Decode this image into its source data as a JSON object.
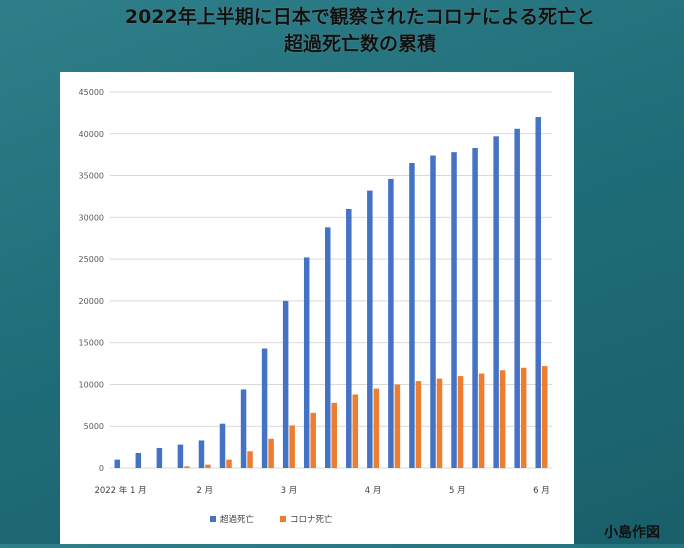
{
  "title": {
    "line1": "2022年上半期に日本で観察されたコロナによる死亡と",
    "line2": "超過死亡数の累積"
  },
  "credit": "小島作図",
  "colors": {
    "excess": "#4472c4",
    "covid": "#ed7d31",
    "background": "#237480",
    "grid": "#d9d9d9"
  },
  "chart_data": {
    "type": "bar",
    "ylim": [
      0,
      45000
    ],
    "yticks": [
      "0",
      "5000",
      "10000",
      "15000",
      "20000",
      "25000",
      "30000",
      "35000",
      "40000",
      "45000"
    ],
    "xtick_labels": [
      {
        "label": "2022 年 1 月",
        "index": 0
      },
      {
        "label": "2 月",
        "index": 4
      },
      {
        "label": "3 月",
        "index": 8
      },
      {
        "label": "4 月",
        "index": 12
      },
      {
        "label": "5 月",
        "index": 16
      },
      {
        "label": "6 月",
        "index": 20
      }
    ],
    "series": [
      {
        "name": "超過死亡",
        "values": [
          1000,
          1800,
          2400,
          2800,
          3300,
          5300,
          9400,
          14300,
          20000,
          25200,
          28800,
          31000,
          33200,
          34600,
          36500,
          37400,
          37800,
          38300,
          39700,
          40600,
          42000
        ]
      },
      {
        "name": "コロナ死亡",
        "values": [
          0,
          0,
          0,
          200,
          400,
          1000,
          2000,
          3500,
          5100,
          6600,
          7800,
          8800,
          9500,
          10000,
          10400,
          10700,
          11000,
          11300,
          11700,
          12000,
          12200
        ]
      }
    ],
    "legend": "bottom"
  }
}
